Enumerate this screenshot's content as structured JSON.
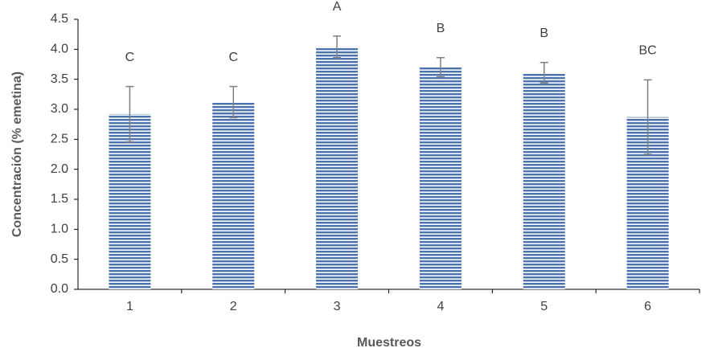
{
  "chart_data": {
    "type": "bar",
    "y_label": "Concentración (% emetina)",
    "x_label": "Muestreos",
    "categories": [
      "1",
      "2",
      "3",
      "4",
      "5",
      "6"
    ],
    "values": [
      2.92,
      3.12,
      4.04,
      3.7,
      3.61,
      2.87
    ],
    "errors": [
      0.46,
      0.26,
      0.18,
      0.16,
      0.17,
      0.62
    ],
    "annotations": [
      "C",
      "C",
      "A",
      "B",
      "B",
      "BC"
    ],
    "color": "#4a72b0",
    "error_color": "#808080",
    "ylim": [
      0,
      4.5
    ],
    "yticks": [
      {
        "value": 0,
        "label": "0.0"
      },
      0.5,
      {
        "value": 1,
        "label": "1.0"
      },
      1.5,
      {
        "value": 2,
        "label": "2.0"
      },
      2.5,
      {
        "value": 3,
        "label": "3.0"
      },
      3.5,
      {
        "value": 4,
        "label": "4.0"
      },
      4.5
    ],
    "grid": false
  }
}
